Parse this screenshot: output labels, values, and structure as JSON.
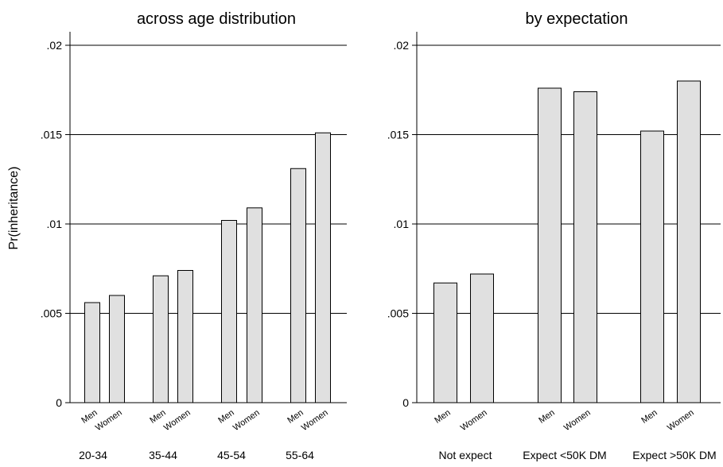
{
  "figure": {
    "ylabel": "Pr(inheritance)"
  },
  "chart_data": [
    {
      "type": "bar",
      "title": "across age distribution",
      "ylabel": "Pr(inheritance)",
      "ylim": [
        0,
        0.02
      ],
      "yticks": [
        0,
        0.005,
        0.01,
        0.015,
        0.02
      ],
      "ytick_labels": [
        "0",
        ".005",
        ".01",
        ".015",
        ".02"
      ],
      "grid": true,
      "bar_color": "#e0e0e0",
      "groups": [
        {
          "label": "20-34",
          "bars": [
            {
              "label": "Men",
              "value": 0.0056
            },
            {
              "label": "Women",
              "value": 0.006
            }
          ]
        },
        {
          "label": "35-44",
          "bars": [
            {
              "label": "Men",
              "value": 0.0071
            },
            {
              "label": "Women",
              "value": 0.0074
            }
          ]
        },
        {
          "label": "45-54",
          "bars": [
            {
              "label": "Men",
              "value": 0.0102
            },
            {
              "label": "Women",
              "value": 0.0109
            }
          ]
        },
        {
          "label": "55-64",
          "bars": [
            {
              "label": "Men",
              "value": 0.0131
            },
            {
              "label": "Women",
              "value": 0.0151
            }
          ]
        }
      ]
    },
    {
      "type": "bar",
      "title": "by expectation",
      "ylim": [
        0,
        0.02
      ],
      "yticks": [
        0,
        0.005,
        0.01,
        0.015,
        0.02
      ],
      "ytick_labels": [
        "0",
        ".005",
        ".01",
        ".015",
        ".02"
      ],
      "grid": true,
      "bar_color": "#e0e0e0",
      "groups": [
        {
          "label": "Not expect",
          "bars": [
            {
              "label": "Men",
              "value": 0.0067
            },
            {
              "label": "Women",
              "value": 0.0072
            }
          ]
        },
        {
          "label": "Expect <50K DM",
          "bars": [
            {
              "label": "Men",
              "value": 0.0176
            },
            {
              "label": "Women",
              "value": 0.0174
            }
          ]
        },
        {
          "label": "Expect >50K DM",
          "bars": [
            {
              "label": "Men",
              "value": 0.0152
            },
            {
              "label": "Women",
              "value": 0.018
            }
          ]
        }
      ]
    }
  ]
}
